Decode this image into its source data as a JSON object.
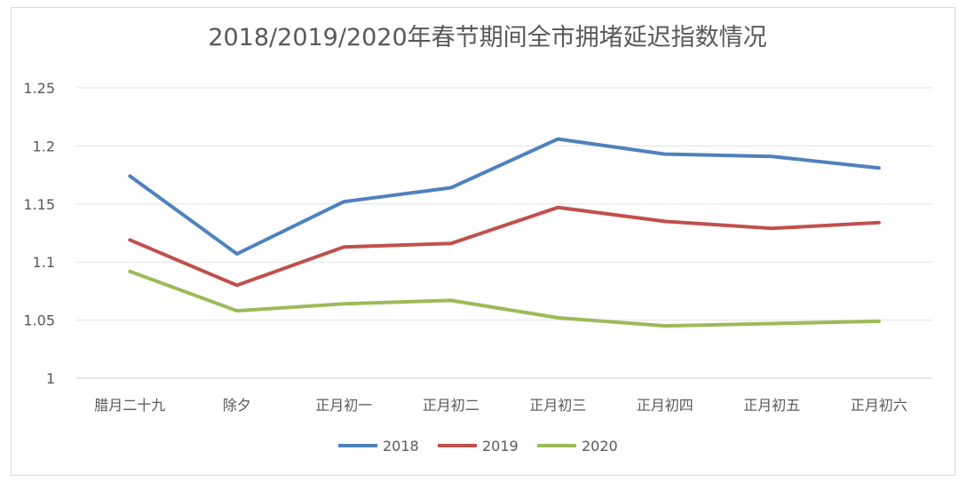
{
  "chart_data": {
    "type": "line",
    "title": "2018/2019/2020年春节期间全市拥堵延迟指数情况",
    "xlabel": "",
    "ylabel": "",
    "categories": [
      "腊月二十九",
      "除夕",
      "正月初一",
      "正月初二",
      "正月初三",
      "正月初四",
      "正月初五",
      "正月初六"
    ],
    "ylim": [
      1,
      1.25
    ],
    "yticks": [
      "1",
      "1.05",
      "1.1",
      "1.15",
      "1.2",
      "1.25"
    ],
    "grid": true,
    "legend": "bottom",
    "series": [
      {
        "name": "2018",
        "color": "#4f81bd",
        "values": [
          1.174,
          1.107,
          1.152,
          1.164,
          1.206,
          1.193,
          1.191,
          1.181
        ]
      },
      {
        "name": "2019",
        "color": "#c0504d",
        "values": [
          1.119,
          1.08,
          1.113,
          1.116,
          1.147,
          1.135,
          1.129,
          1.134
        ]
      },
      {
        "name": "2020",
        "color": "#9bbb59",
        "values": [
          1.092,
          1.058,
          1.064,
          1.067,
          1.052,
          1.045,
          1.047,
          1.049
        ]
      }
    ]
  }
}
